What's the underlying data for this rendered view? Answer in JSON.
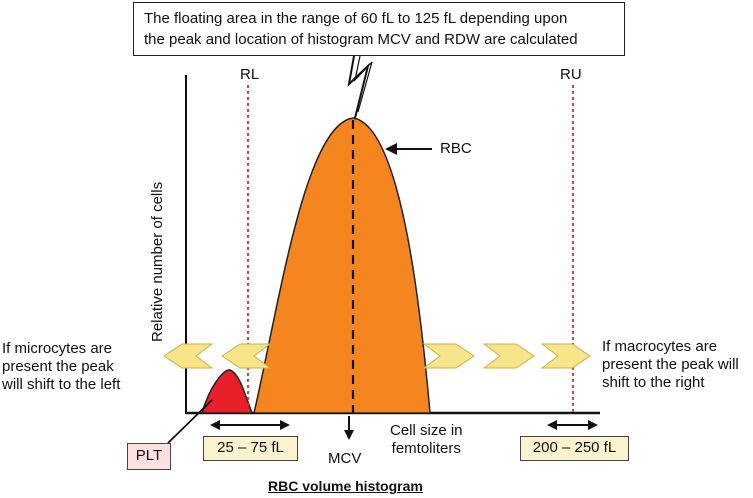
{
  "note": {
    "line1": "The floating area in the range of 60 fL to 125 fL depending upon",
    "line2": "the peak and location of histogram MCV and RDW are calculated"
  },
  "markers": {
    "rl": "RL",
    "ru": "RU",
    "rbc": "RBC",
    "mcv": "MCV",
    "plt": "PLT"
  },
  "axes": {
    "ylabel": "Relative number of cells",
    "xlabel_line1": "Cell size in",
    "xlabel_line2": "femtoliters"
  },
  "ranges": {
    "left": "25 – 75 fL",
    "right": "200 – 250 fL"
  },
  "left_note": {
    "line1": "If microcytes are",
    "line2": "present the peak",
    "line3": "will shift to the left"
  },
  "right_note": {
    "line1": "If macrocytes are",
    "line2": "present the peak will",
    "line3": "shift to the right"
  },
  "title": "RBC volume histogram",
  "colors": {
    "rbc_fill": "#f5861f",
    "plt_fill": "#e8202a",
    "dashed_boundary": "#c0392b",
    "chevron_fill": "#f8e58a",
    "range_box_fill": "#fbf3cf",
    "plt_box_fill": "#fde0df"
  }
}
